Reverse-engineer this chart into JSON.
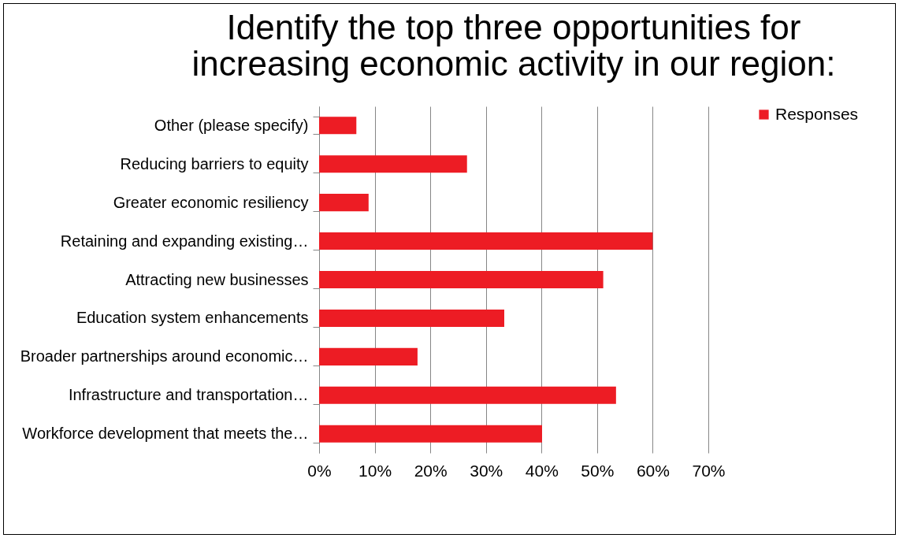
{
  "chart_data": {
    "type": "bar",
    "orientation": "horizontal",
    "title": "Identify the top three opportunities for increasing economic activity in our region:",
    "categories": [
      "Other (please specify)",
      "Reducing barriers to equity",
      "Greater economic resiliency",
      "Retaining and expanding existing…",
      "Attracting new businesses",
      "Education system enhancements",
      "Broader partnerships around economic…",
      "Infrastructure and transportation…",
      "Workforce development that meets the…"
    ],
    "series": [
      {
        "name": "Responses",
        "color": "#ed1c24",
        "values": [
          6.7,
          26.6,
          8.9,
          60.0,
          51.1,
          33.3,
          17.7,
          53.4,
          40.1
        ]
      }
    ],
    "xlim": [
      0,
      70
    ],
    "xticks": [
      {
        "value": 0,
        "label": "0%"
      },
      {
        "value": 10,
        "label": "10%"
      },
      {
        "value": 20,
        "label": "20%"
      },
      {
        "value": 30,
        "label": "30%"
      },
      {
        "value": 40,
        "label": "40%"
      },
      {
        "value": 50,
        "label": "50%"
      },
      {
        "value": 60,
        "label": "60%"
      },
      {
        "value": 70,
        "label": "70%"
      }
    ],
    "grid": "x",
    "legend": "right"
  }
}
